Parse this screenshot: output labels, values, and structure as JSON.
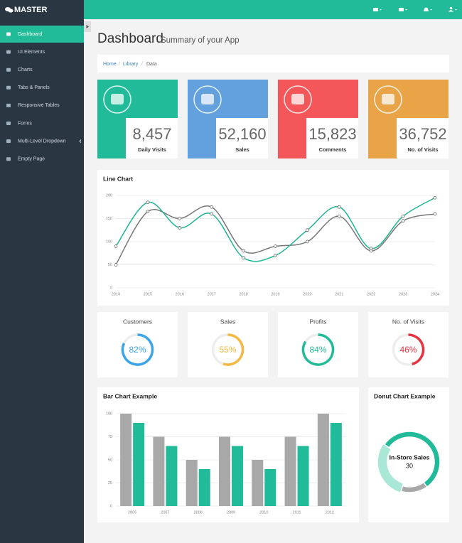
{
  "brand": "MASTER",
  "sidebar": {
    "items": [
      "Dashboard",
      "UI Elements",
      "Charts",
      "Tabs & Panels",
      "Responsive Tables",
      "Forms",
      "Multi-Level Dropdown",
      "Empty Page"
    ]
  },
  "page": {
    "title": "Dashboard",
    "subtitle": "Summary of your App"
  },
  "breadcrumb": {
    "items": [
      "Home",
      "Library",
      "Data"
    ],
    "separator": "/"
  },
  "stats": [
    {
      "value": "8,457",
      "label": "Daily Visits",
      "color": "#22bb99"
    },
    {
      "value": "52,160",
      "label": "Sales",
      "color": "#62a1de"
    },
    {
      "value": "15,823",
      "label": "Comments",
      "color": "#f3575a"
    },
    {
      "value": "36,752",
      "label": "No. of Visits",
      "color": "#e8a447"
    }
  ],
  "chart_data": [
    {
      "type": "line",
      "title": "Line Chart",
      "categories": [
        "2014",
        "2015",
        "2016",
        "2017",
        "2018",
        "2019",
        "2020",
        "2021",
        "2022",
        "2023",
        "2024"
      ],
      "series": [
        {
          "color": "#777777",
          "values": [
            50,
            165,
            150,
            175,
            80,
            90,
            100,
            155,
            80,
            145,
            160
          ]
        },
        {
          "color": "#1fb594",
          "values": [
            90,
            185,
            130,
            160,
            65,
            70,
            125,
            175,
            85,
            155,
            195
          ]
        }
      ],
      "ylim": [
        0,
        200
      ],
      "yticks": [
        0,
        50,
        100,
        150,
        200
      ],
      "grid": true
    },
    {
      "type": "gauge",
      "categories": [
        "Customers",
        "Sales",
        "Profits",
        "No. of Visits"
      ],
      "values": [
        82,
        55,
        84,
        46
      ],
      "value_labels": [
        "82%",
        "55%",
        "84%",
        "46%"
      ],
      "colors": [
        "#3ba4ea",
        "#f5b843",
        "#22bb99",
        "#e8323f"
      ],
      "ylim": [
        0,
        100
      ]
    },
    {
      "type": "bar",
      "title": "Bar Chart Example",
      "categories": [
        "2006",
        "2007",
        "2008",
        "2009",
        "2010",
        "2011",
        "2012"
      ],
      "series": [
        {
          "color": "#a8a8a8",
          "values": [
            100,
            75,
            50,
            75,
            50,
            75,
            100
          ]
        },
        {
          "color": "#22bb99",
          "values": [
            90,
            65,
            40,
            65,
            40,
            65,
            90
          ]
        }
      ],
      "ylim": [
        0,
        100
      ],
      "yticks": [
        0,
        25,
        50,
        75,
        100
      ],
      "grid": true
    },
    {
      "type": "donut",
      "title": "Donut Chart Example",
      "center_label": "In-Store Sales",
      "values": [
        55,
        14,
        30
      ],
      "colors": [
        "#22bb99",
        "#a8a8a8",
        "#a9e8d6"
      ]
    }
  ]
}
